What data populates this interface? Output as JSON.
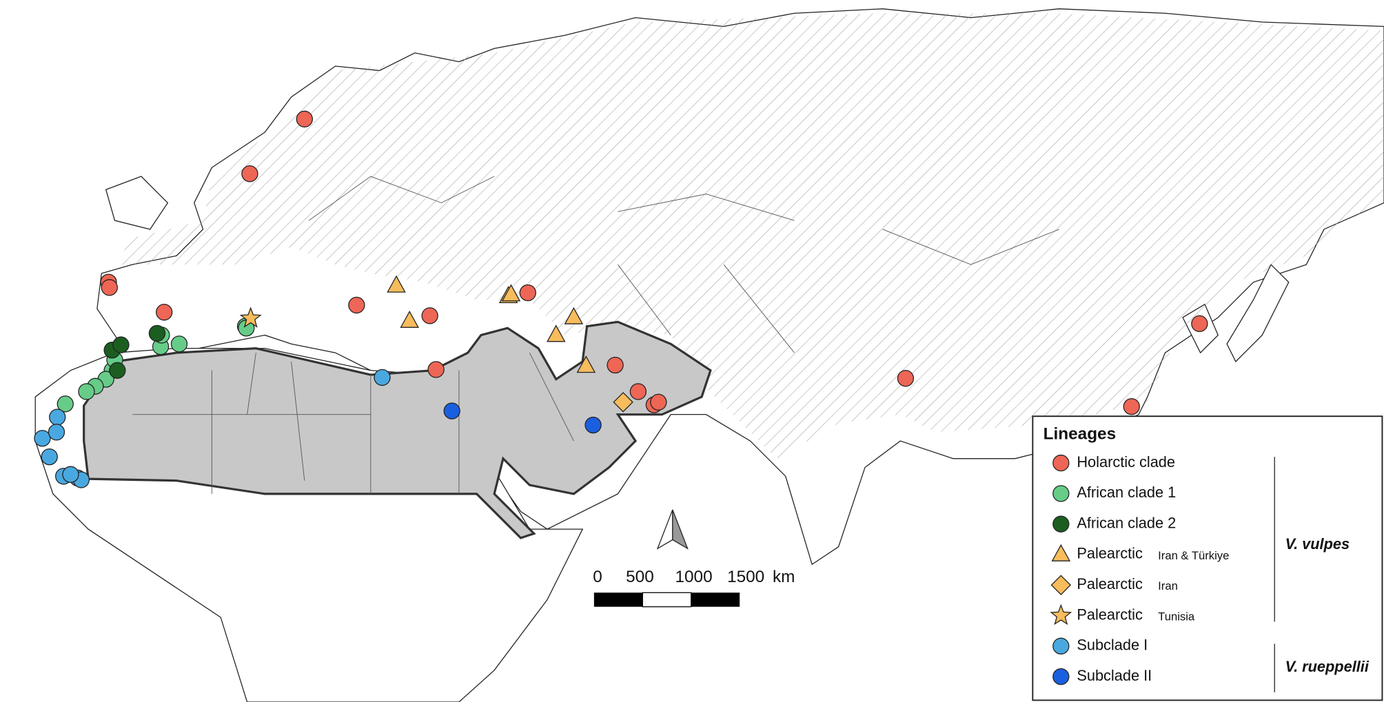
{
  "legend": {
    "title": "Lineages",
    "items": [
      {
        "label": "Holarctic clade",
        "color": "#ee6655",
        "shape": "circle"
      },
      {
        "label": "African clade 1",
        "color": "#66cc88",
        "shape": "circle"
      },
      {
        "label": "African clade 2",
        "color": "#1b5e20",
        "shape": "circle"
      },
      {
        "label": "Palearctic",
        "note": "Iran & Türkiye",
        "color": "#f7bc5c",
        "shape": "triangle"
      },
      {
        "label": "Palearctic",
        "note": "Iran",
        "color": "#f7bc5c",
        "shape": "diamond"
      },
      {
        "label": "Palearctic",
        "note": "Tunisia",
        "color": "#f7bc5c",
        "shape": "star"
      },
      {
        "label": "Subclade I",
        "color": "#4aa8e0",
        "shape": "circle"
      },
      {
        "label": "Subclade II",
        "color": "#1a5fe0",
        "shape": "circle"
      }
    ],
    "species": [
      "V. vulpes",
      "V. rueppellii"
    ]
  },
  "scale_bar": {
    "labels": [
      "0",
      "500",
      "1000",
      "1500"
    ],
    "unit": "km"
  }
}
